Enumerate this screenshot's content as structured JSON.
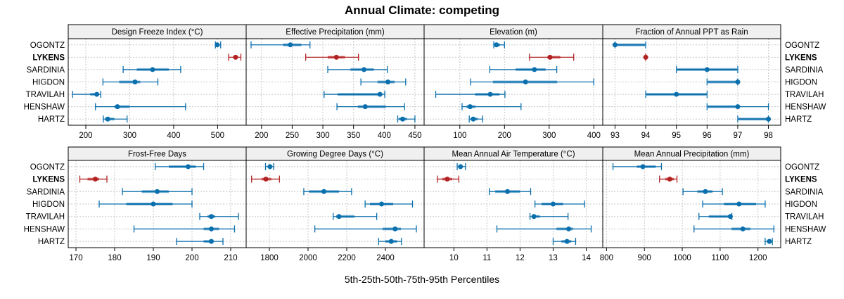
{
  "chart_data": {
    "type": "dot-interval",
    "title": "Annual Climate: competing",
    "xlabel": "5th-25th-50th-75th-95th Percentiles",
    "rows": [
      "OGONTZ",
      "LYKENS",
      "SARDINIA",
      "HIGDON",
      "TRAVILAH",
      "HENSHAW",
      "HARTZ"
    ],
    "highlight_row": "LYKENS",
    "colors": {
      "default": "#0a6fad",
      "default_light": "#7fb4d6",
      "highlight": "#b22222",
      "highlight_light": "#e08a8a"
    },
    "panels": [
      {
        "title": "Design Freeze Index (°C)",
        "ticks": [
          200,
          300,
          400,
          500
        ],
        "xlim": [
          160,
          565
        ],
        "data": {
          "OGONTZ": [
            495,
            497,
            499,
            503,
            507
          ],
          "LYKENS": [
            525,
            535,
            541,
            546,
            553
          ],
          "SARDINIA": [
            285,
            316,
            352,
            389,
            416
          ],
          "HIGDON": [
            239,
            276,
            312,
            324,
            364
          ],
          "TRAVILAH": [
            170,
            210,
            225,
            229,
            234
          ],
          "HENSHAW": [
            222,
            265,
            272,
            300,
            427
          ],
          "HARTZ": [
            240,
            244,
            250,
            265,
            294
          ]
        }
      },
      {
        "title": "Effective Precipitation (mm)",
        "ticks": [
          200,
          250,
          300,
          350,
          400,
          450
        ],
        "xlim": [
          175,
          465
        ],
        "data": {
          "OGONTZ": [
            183,
            235,
            247,
            265,
            279
          ],
          "LYKENS": [
            272,
            308,
            322,
            336,
            358
          ],
          "SARDINIA": [
            308,
            345,
            367,
            383,
            405
          ],
          "HIGDON": [
            362,
            389,
            406,
            417,
            435
          ],
          "TRAVILAH": [
            302,
            324,
            393,
            396,
            401
          ],
          "HENSHAW": [
            323,
            357,
            369,
            403,
            433
          ],
          "HARTZ": [
            422,
            424,
            430,
            437,
            450
          ]
        }
      },
      {
        "title": "Elevation (m)",
        "ticks": [
          100,
          200,
          300,
          400
        ],
        "xlim": [
          20,
          420
        ],
        "data": {
          "OGONTZ": [
            176,
            180,
            182,
            190,
            200
          ],
          "LYKENS": [
            256,
            296,
            302,
            325,
            355
          ],
          "SARDINIA": [
            167,
            225,
            267,
            292,
            317
          ],
          "HIGDON": [
            124,
            174,
            247,
            318,
            400
          ],
          "TRAVILAH": [
            46,
            134,
            168,
            189,
            201
          ],
          "HENSHAW": [
            105,
            115,
            123,
            135,
            237
          ],
          "HARTZ": [
            121,
            124,
            130,
            140,
            151
          ]
        }
      },
      {
        "title": "Fraction of Annual PPT as Rain",
        "ticks": [
          93,
          94,
          95,
          96,
          97,
          98
        ],
        "xlim": [
          92.6,
          98.4
        ],
        "data": {
          "OGONTZ": [
            93,
            93,
            93,
            94,
            94
          ],
          "LYKENS": [
            94,
            94,
            94,
            94,
            94
          ],
          "SARDINIA": [
            95,
            95,
            96,
            97,
            97
          ],
          "HIGDON": [
            96,
            96,
            97,
            97,
            97
          ],
          "TRAVILAH": [
            94,
            94,
            95,
            96,
            96
          ],
          "HENSHAW": [
            96,
            96,
            97,
            97,
            98
          ],
          "HARTZ": [
            97,
            97,
            98,
            98,
            98
          ]
        }
      },
      {
        "title": "Frost-Free Days",
        "ticks": [
          170,
          180,
          190,
          200,
          210
        ],
        "xlim": [
          168,
          214
        ],
        "data": {
          "OGONTZ": [
            190.5,
            194,
            199,
            201,
            203
          ],
          "LYKENS": [
            171,
            173,
            175,
            176,
            178
          ],
          "SARDINIA": [
            182,
            187,
            191,
            194,
            200
          ],
          "HIGDON": [
            176,
            183,
            190,
            195,
            200
          ],
          "TRAVILAH": [
            202,
            204,
            205,
            206,
            212
          ],
          "HENSHAW": [
            185,
            203,
            205,
            207,
            211
          ],
          "HARTZ": [
            196,
            203,
            205,
            205,
            208
          ]
        }
      },
      {
        "title": "Growing Degree Days (°C)",
        "ticks": [
          1800,
          2000,
          2200,
          2400
        ],
        "xlim": [
          1680,
          2600
        ],
        "data": {
          "OGONTZ": [
            1780,
            1795,
            1803,
            1812,
            1822
          ],
          "LYKENS": [
            1708,
            1760,
            1782,
            1810,
            1852
          ],
          "SARDINIA": [
            1978,
            2005,
            2082,
            2160,
            2225
          ],
          "HIGDON": [
            2295,
            2320,
            2380,
            2440,
            2540
          ],
          "TRAVILAH": [
            2130,
            2145,
            2160,
            2240,
            2355
          ],
          "HENSHAW": [
            2035,
            2385,
            2450,
            2480,
            2560
          ],
          "HARTZ": [
            2365,
            2400,
            2430,
            2460,
            2483
          ]
        }
      },
      {
        "title": "Mean Annual Air Temperature (°C)",
        "ticks": [
          10,
          11,
          12,
          13,
          14
        ],
        "xlim": [
          9.1,
          14.5
        ],
        "data": {
          "OGONTZ": [
            10.1,
            10.15,
            10.2,
            10.25,
            10.35
          ],
          "LYKENS": [
            9.5,
            9.65,
            9.8,
            9.95,
            10.15
          ],
          "SARDINIA": [
            11.07,
            11.25,
            11.62,
            12.0,
            12.32
          ],
          "HIGDON": [
            12.45,
            12.65,
            13.0,
            13.3,
            13.95
          ],
          "TRAVILAH": [
            12.3,
            12.35,
            12.42,
            12.6,
            13.45
          ],
          "HENSHAW": [
            11.3,
            13.1,
            13.47,
            13.6,
            14.15
          ],
          "HARTZ": [
            13.0,
            13.25,
            13.42,
            13.55,
            13.68
          ]
        }
      },
      {
        "title": "Mean Annual Precipitation (mm)",
        "ticks": [
          800,
          900,
          1000,
          1100,
          1200
        ],
        "xlim": [
          790,
          1260
        ],
        "data": {
          "OGONTZ": [
            817,
            880,
            896,
            930,
            945
          ],
          "LYKENS": [
            940,
            955,
            967,
            978,
            986
          ],
          "SARDINIA": [
            1002,
            1040,
            1061,
            1080,
            1106
          ],
          "HIGDON": [
            1054,
            1110,
            1150,
            1195,
            1219
          ],
          "TRAVILAH": [
            1044,
            1070,
            1127,
            1130,
            1131
          ],
          "HENSHAW": [
            1031,
            1130,
            1160,
            1180,
            1242
          ],
          "HARTZ": [
            1219,
            1225,
            1230,
            1235,
            1238
          ]
        }
      }
    ]
  }
}
